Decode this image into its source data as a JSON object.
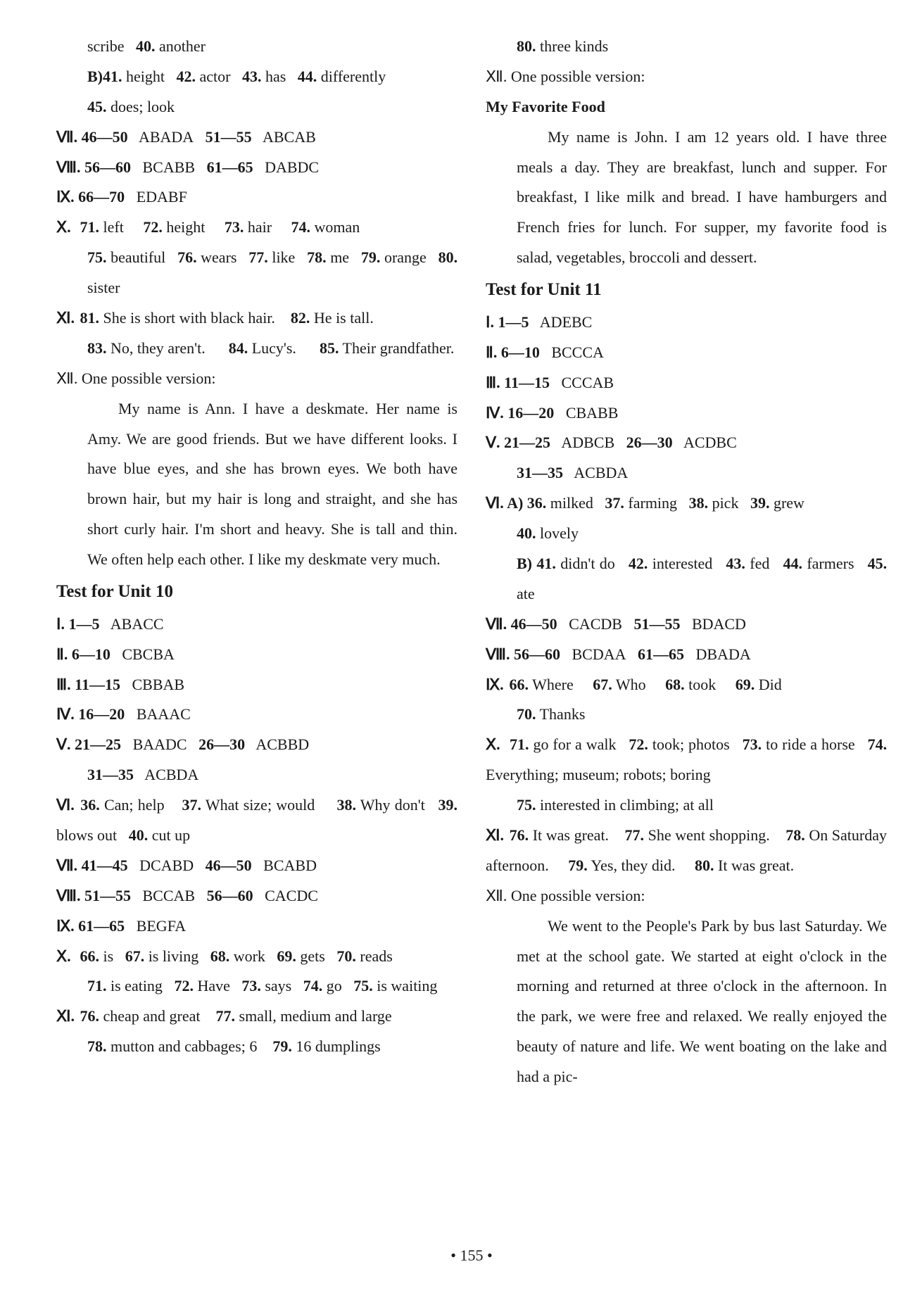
{
  "page_number": "• 155 •",
  "left": {
    "l1": "scribe",
    "l1b": "40.",
    "l1c": "another",
    "l2a": "B)41.",
    "l2b": "height",
    "l2c": "42.",
    "l2d": "actor",
    "l2e": "43.",
    "l2f": "has",
    "l2g": "44.",
    "l2h": "differently",
    "l3a": "45.",
    "l3b": "does; look",
    "s7": "Ⅶ. 46—50",
    "s7a": "ABADA",
    "s7b": "51—55",
    "s7c": "ABCAB",
    "s8": "Ⅷ. 56—60",
    "s8a": "BCABB",
    "s8b": "61—65",
    "s8c": "DABDC",
    "s9": "Ⅸ. 66—70",
    "s9a": "EDABF",
    "s10": "Ⅹ.",
    "s10_71": "71.",
    "s10_71a": "left",
    "s10_72": "72.",
    "s10_72a": "height",
    "s10_73": "73.",
    "s10_73a": "hair",
    "s10_74": "74.",
    "s10_74a": "woman",
    "s10_75": "75.",
    "s10_75a": "beautiful",
    "s10_76": "76.",
    "s10_76a": "wears",
    "s10_77": "77.",
    "s10_77a": "like",
    "s10_78": "78.",
    "s10_78a": "me",
    "s10_79": "79.",
    "s10_79a": "orange",
    "s10_80": "80.",
    "s10_80a": "sister",
    "s11": "Ⅺ.",
    "s11_81": "81.",
    "s11_81a": "She is short with black hair.",
    "s11_82": "82.",
    "s11_82a": "He is tall.",
    "s11_83": "83.",
    "s11_83a": "No, they aren't.",
    "s11_84": "84.",
    "s11_84a": "Lucy's.",
    "s11_85": "85.",
    "s11_85a": "Their grandfather.",
    "s12": "Ⅻ. One possible version:",
    "essay1": "My name is Ann. I have a deskmate. Her name is Amy. We are good friends. But we have different looks. I have blue eyes, and she has brown eyes. We both have brown hair, but my hair is long and straight, and she has short curly hair. I'm short and heavy. She is tall and thin. We often help each other. I like my deskmate very much.",
    "unit10_title": "Test for Unit 10",
    "u10_1": "Ⅰ. 1—5",
    "u10_1a": "ABACC",
    "u10_2": "Ⅱ. 6—10",
    "u10_2a": "CBCBA",
    "u10_3": "Ⅲ. 11—15",
    "u10_3a": "CBBAB",
    "u10_4": "Ⅳ. 16—20",
    "u10_4a": "BAAAC",
    "u10_5": "Ⅴ. 21—25",
    "u10_5a": "BAADC",
    "u10_5b": "26—30",
    "u10_5c": "ACBBD",
    "u10_5d": "31—35",
    "u10_5e": "ACBDA",
    "u10_6": "Ⅵ.",
    "u10_6_36": "36.",
    "u10_6_36a": "Can; help",
    "u10_6_37": "37.",
    "u10_6_37a": "What size; would",
    "u10_6_38": "38.",
    "u10_6_38a": "Why don't",
    "u10_6_39": "39.",
    "u10_6_39a": "blows out",
    "u10_6_40": "40.",
    "u10_6_40a": "cut up",
    "u10_7": "Ⅶ. 41—45",
    "u10_7a": "DCABD",
    "u10_7b": "46—50",
    "u10_7c": "BCABD",
    "u10_8": "Ⅷ. 51—55",
    "u10_8a": "BCCAB",
    "u10_8b": "56—60",
    "u10_8c": "CACDC",
    "u10_9": "Ⅸ. 61—65",
    "u10_9a": "BEGFA",
    "u10_10": "Ⅹ.",
    "u10_10_66": "66.",
    "u10_10_66a": "is",
    "u10_10_67": "67.",
    "u10_10_67a": "is living",
    "u10_10_68": "68.",
    "u10_10_68a": "work",
    "u10_10_69": "69.",
    "u10_10_69a": "gets",
    "u10_10_70": "70.",
    "u10_10_70a": "reads",
    "u10_10_71": "71.",
    "u10_10_71a": "is eating",
    "u10_10_72": "72.",
    "u10_10_72a": "Have",
    "u10_10_73": "73.",
    "u10_10_73a": "says",
    "u10_10_74": "74.",
    "u10_10_74a": "go",
    "u10_10_75": "75.",
    "u10_10_75a": "is waiting",
    "u10_11": "Ⅺ.",
    "u10_11_76": "76.",
    "u10_11_76a": "cheap and great",
    "u10_11_77": "77.",
    "u10_11_77a": "small, medium and large",
    "u10_11_78": "78.",
    "u10_11_78a": "mutton and cabbages; 6",
    "u10_11_79": "79.",
    "u10_11_79a": "16 dumplings"
  },
  "right": {
    "r1": "80.",
    "r1a": "three kinds",
    "r2": "Ⅻ. One possible version:",
    "essay_title": "My Favorite Food",
    "essay2": "My name is John. I am 12 years old. I have three meals a day. They are breakfast, lunch and supper. For breakfast, I like milk and bread. I have hamburgers and French fries for lunch. For supper, my favorite food is salad, vegetables, broccoli and dessert.",
    "unit11_title": "Test for Unit 11",
    "u11_1": "Ⅰ. 1—5",
    "u11_1a": "ADEBC",
    "u11_2": "Ⅱ. 6—10",
    "u11_2a": "BCCCA",
    "u11_3": "Ⅲ. 11—15",
    "u11_3a": "CCCAB",
    "u11_4": "Ⅳ. 16—20",
    "u11_4a": "CBABB",
    "u11_5": "Ⅴ. 21—25",
    "u11_5a": "ADBCB",
    "u11_5b": "26—30",
    "u11_5c": "ACDBC",
    "u11_5d": "31—35",
    "u11_5e": "ACBDA",
    "u11_6": "Ⅵ. A)",
    "u11_6_36": "36.",
    "u11_6_36a": "milked",
    "u11_6_37": "37.",
    "u11_6_37a": "farming",
    "u11_6_38": "38.",
    "u11_6_38a": "pick",
    "u11_6_39": "39.",
    "u11_6_39a": "grew",
    "u11_6_40": "40.",
    "u11_6_40a": "lovely",
    "u11_6b": "B)",
    "u11_6_41": "41.",
    "u11_6_41a": "didn't do",
    "u11_6_42": "42.",
    "u11_6_42a": "interested",
    "u11_6_43": "43.",
    "u11_6_43a": "fed",
    "u11_6_44": "44.",
    "u11_6_44a": "farmers",
    "u11_6_45": "45.",
    "u11_6_45a": "ate",
    "u11_7": "Ⅶ. 46—50",
    "u11_7a": "CACDB",
    "u11_7b": "51—55",
    "u11_7c": "BDACD",
    "u11_8": "Ⅷ. 56—60",
    "u11_8a": "BCDAA",
    "u11_8b": "61—65",
    "u11_8c": "DBADA",
    "u11_9": "Ⅸ.",
    "u11_9_66": "66.",
    "u11_9_66a": "Where",
    "u11_9_67": "67.",
    "u11_9_67a": "Who",
    "u11_9_68": "68.",
    "u11_9_68a": "took",
    "u11_9_69": "69.",
    "u11_9_69a": "Did",
    "u11_9_70": "70.",
    "u11_9_70a": "Thanks",
    "u11_10": "Ⅹ.",
    "u11_10_71": "71.",
    "u11_10_71a": "go for a walk",
    "u11_10_72": "72.",
    "u11_10_72a": "took; photos",
    "u11_10_73": "73.",
    "u11_10_73a": "to ride a horse",
    "u11_10_74": "74.",
    "u11_10_74a": "Everything; museum; robots; boring",
    "u11_10_75": "75.",
    "u11_10_75a": "interested in climbing; at all",
    "u11_11": "Ⅺ.",
    "u11_11_76": "76.",
    "u11_11_76a": "It was great.",
    "u11_11_77": "77.",
    "u11_11_77a": "She went shopping.",
    "u11_11_78": "78.",
    "u11_11_78a": "On Saturday afternoon.",
    "u11_11_79": "79.",
    "u11_11_79a": "Yes, they did.",
    "u11_11_80": "80.",
    "u11_11_80a": "It was great.",
    "u11_12": "Ⅻ. One possible version:",
    "essay3": "We went to the People's Park by bus last Saturday. We met at the school gate. We started at eight o'clock in the morning and returned at three o'clock in the afternoon. In the park, we were free and relaxed. We really enjoyed the beauty of nature and life. We went boating on the lake and had a pic-"
  }
}
